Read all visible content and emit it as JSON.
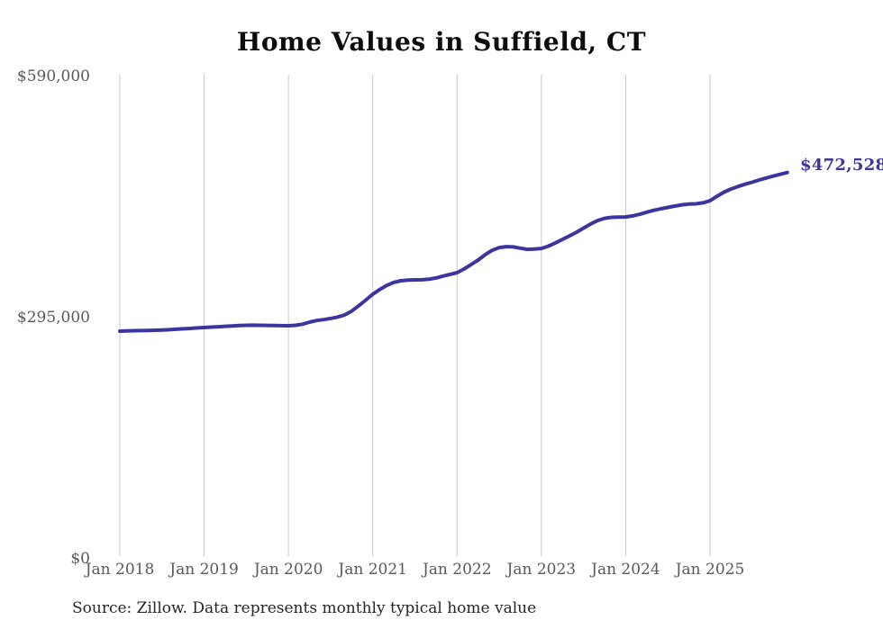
{
  "chart_data": {
    "type": "line",
    "title": "Home Values in Suffield, CT",
    "source": "Source: Zillow. Data represents monthly typical home value",
    "end_label": "$472,528",
    "end_value": 472528,
    "line_color": "#3b35a0",
    "grid_color": "#c9c9c9",
    "tick_label_color": "#595959",
    "ylim": [
      0,
      590000
    ],
    "y_tick_values": [
      590000,
      295000,
      0
    ],
    "y_tick_labels": [
      "$590,000",
      "$295,000",
      "$0"
    ],
    "x_tick_labels": [
      "Jan 2018",
      "Jan 2019",
      "Jan 2020",
      "Jan 2021",
      "Jan 2022",
      "Jan 2023",
      "Jan 2024",
      "Jan 2025"
    ],
    "x_start_month": "Jan 2018",
    "x_interval": "monthly",
    "grid": "vertical-only",
    "legend": "none",
    "series": [
      {
        "name": "Typical home value",
        "values": [
          278500,
          278800,
          279000,
          279200,
          279400,
          279600,
          279900,
          280300,
          280800,
          281300,
          281800,
          282400,
          282900,
          283400,
          283900,
          284400,
          284900,
          285300,
          285600,
          285700,
          285600,
          285500,
          285300,
          285200,
          285100,
          285600,
          287000,
          289500,
          291500,
          292600,
          294000,
          295800,
          298300,
          303000,
          309500,
          316500,
          323600,
          329500,
          334500,
          338200,
          340100,
          341000,
          341200,
          341300,
          342000,
          343500,
          345800,
          348000,
          350000,
          354500,
          360000,
          365400,
          372000,
          377500,
          380800,
          381900,
          381500,
          380000,
          378600,
          378900,
          379700,
          382500,
          386500,
          390800,
          394900,
          399500,
          404500,
          409500,
          413800,
          416500,
          417700,
          418100,
          418200,
          419500,
          421500,
          424000,
          426300,
          428100,
          429800,
          431500,
          433000,
          433900,
          434200,
          435500,
          438000,
          443500,
          448500,
          452400,
          455500,
          458200,
          460700,
          463400,
          465800,
          468100,
          470300,
          472528
        ]
      }
    ]
  }
}
